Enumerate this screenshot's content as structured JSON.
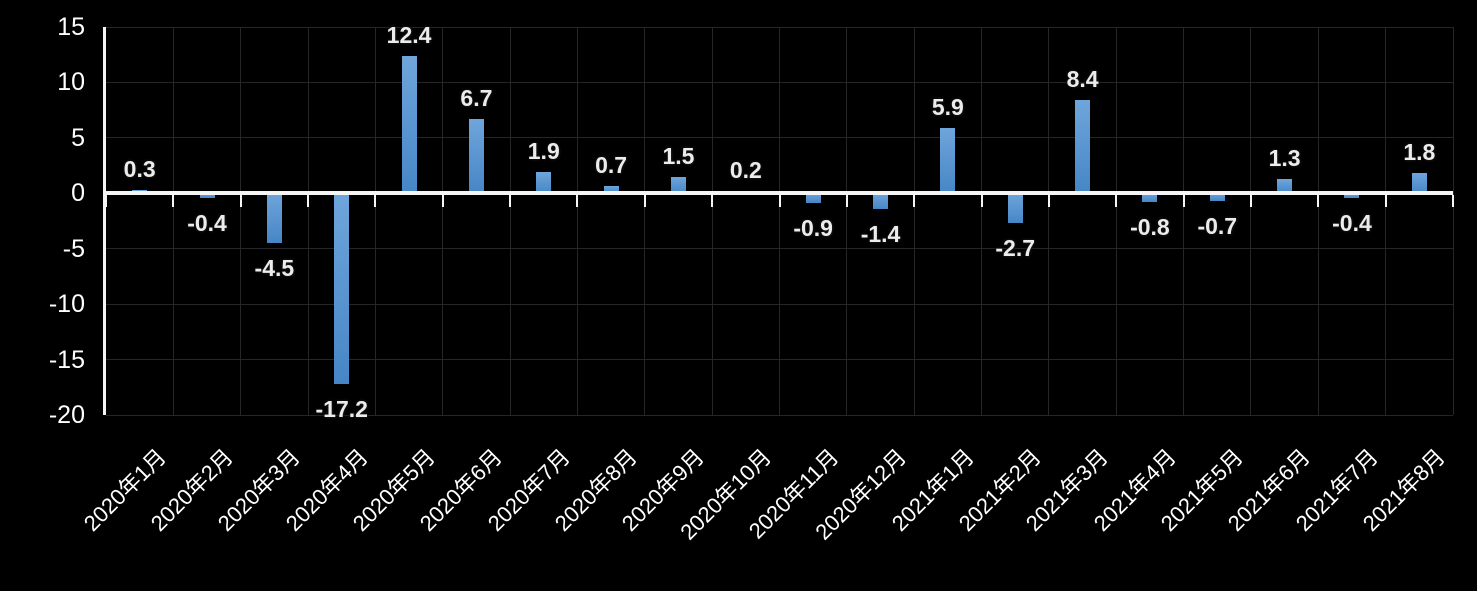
{
  "chart_data": {
    "type": "bar",
    "title": "",
    "xlabel": "",
    "ylabel": "",
    "categories": [
      "2020年1月",
      "2020年2月",
      "2020年3月",
      "2020年4月",
      "2020年5月",
      "2020年6月",
      "2020年7月",
      "2020年8月",
      "2020年9月",
      "2020年10月",
      "2020年11月",
      "2020年12月",
      "2021年1月",
      "2021年2月",
      "2021年3月",
      "2021年4月",
      "2021年5月",
      "2021年6月",
      "2021年7月",
      "2021年8月"
    ],
    "values": [
      0.3,
      -0.4,
      -4.5,
      -17.2,
      12.4,
      6.7,
      1.9,
      0.7,
      1.5,
      0.2,
      -0.9,
      -1.4,
      5.9,
      -2.7,
      8.4,
      -0.8,
      -0.7,
      1.3,
      -0.4,
      1.8
    ],
    "data_labels": [
      "0.3",
      "-0.4",
      "-4.5",
      "-17.2",
      "12.4",
      "6.7",
      "1.9",
      "0.7",
      "1.5",
      "0.2",
      "-0.9",
      "-1.4",
      "5.9",
      "-2.7",
      "8.4",
      "-0.8",
      "-0.7",
      "1.3",
      "-0.4",
      "1.8"
    ],
    "ylim": [
      -20,
      15
    ],
    "yticks": [
      15,
      10,
      5,
      0,
      -5,
      -10,
      -15,
      -20
    ],
    "ytick_labels": [
      "15",
      "10",
      "5",
      "0",
      "-5",
      "-10",
      "-15",
      "-20"
    ],
    "grid": true,
    "legend": false,
    "x_label_rotation_deg": -45
  },
  "style": {
    "background_color": "#000000",
    "gridline_color": "#262626",
    "axis_color": "#F5F5F5",
    "bar_gradient_top": "#6FA5DB",
    "bar_gradient_bottom": "#4686C6",
    "data_label_color": "#ECECEC",
    "tick_label_color": "#FFFFFF"
  }
}
